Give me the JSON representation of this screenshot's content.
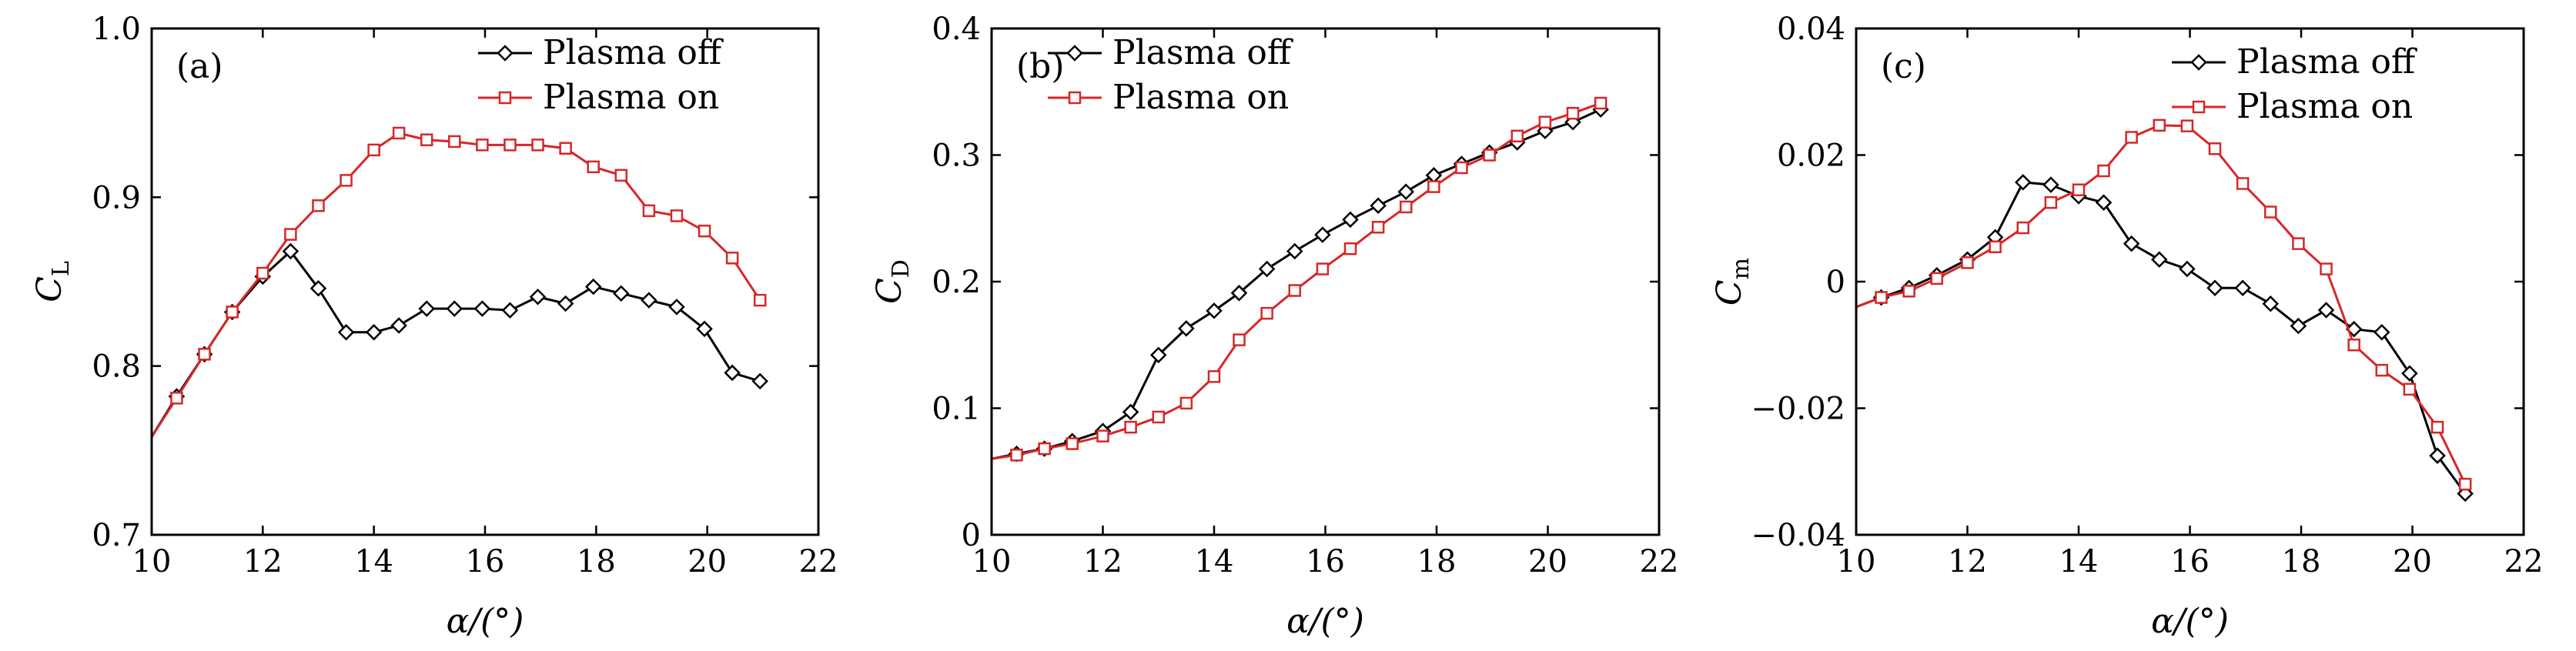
{
  "chart_data": [
    {
      "type": "line",
      "panel_label": "(a)",
      "xlabel": "α/(°)",
      "ylabel": {
        "main": "C",
        "sub": "L"
      },
      "xlim": [
        10,
        22
      ],
      "ylim": [
        0.7,
        1.0
      ],
      "xticks": [
        10,
        12,
        14,
        16,
        18,
        20,
        22
      ],
      "yticks": [
        0.7,
        0.8,
        0.9,
        1.0
      ],
      "ytick_labels": [
        "0.7",
        "0.8",
        "0.9",
        "1.0"
      ],
      "legend_position": "top-right",
      "series": [
        {
          "name": "Plasma off",
          "color": "#000000",
          "marker": "diamond",
          "x": [
            10,
            10.45,
            10.95,
            11.45,
            12.0,
            12.5,
            13.0,
            13.5,
            14.0,
            14.45,
            14.95,
            15.45,
            15.95,
            16.45,
            16.95,
            17.45,
            17.95,
            18.45,
            18.95,
            19.45,
            19.95,
            20.45,
            20.95
          ],
          "y": [
            0.758,
            0.782,
            0.807,
            0.832,
            0.853,
            0.868,
            0.846,
            0.82,
            0.82,
            0.824,
            0.834,
            0.834,
            0.834,
            0.833,
            0.841,
            0.837,
            0.847,
            0.843,
            0.839,
            0.835,
            0.822,
            0.796,
            0.791
          ]
        },
        {
          "name": "Plasma on",
          "color": "#d62728",
          "marker": "square",
          "x": [
            10,
            10.45,
            10.95,
            11.45,
            12.0,
            12.5,
            13.0,
            13.5,
            14.0,
            14.45,
            14.95,
            15.45,
            15.95,
            16.45,
            16.95,
            17.45,
            17.95,
            18.45,
            18.95,
            19.45,
            19.95,
            20.45,
            20.95
          ],
          "y": [
            0.758,
            0.781,
            0.807,
            0.832,
            0.855,
            0.878,
            0.895,
            0.91,
            0.928,
            0.938,
            0.934,
            0.933,
            0.931,
            0.931,
            0.931,
            0.929,
            0.918,
            0.913,
            0.892,
            0.889,
            0.88,
            0.864,
            0.839
          ]
        }
      ]
    },
    {
      "type": "line",
      "panel_label": "(b)",
      "xlabel": "α/(°)",
      "ylabel": {
        "main": "C",
        "sub": "D"
      },
      "xlim": [
        10,
        22
      ],
      "ylim": [
        0,
        0.4
      ],
      "xticks": [
        10,
        12,
        14,
        16,
        18,
        20,
        22
      ],
      "yticks": [
        0,
        0.1,
        0.2,
        0.3,
        0.4
      ],
      "ytick_labels": [
        "0",
        "0.1",
        "0.2",
        "0.3",
        "0.4"
      ],
      "legend_position": "top-left",
      "series": [
        {
          "name": "Plasma off",
          "color": "#000000",
          "marker": "diamond",
          "x": [
            10,
            10.45,
            10.95,
            11.45,
            12.0,
            12.5,
            13.0,
            13.5,
            14.0,
            14.45,
            14.95,
            15.45,
            15.95,
            16.45,
            16.95,
            17.45,
            17.95,
            18.45,
            18.95,
            19.45,
            19.95,
            20.45,
            20.95
          ],
          "y": [
            0.06,
            0.064,
            0.068,
            0.074,
            0.082,
            0.097,
            0.142,
            0.163,
            0.177,
            0.191,
            0.21,
            0.224,
            0.237,
            0.249,
            0.26,
            0.271,
            0.284,
            0.293,
            0.302,
            0.31,
            0.319,
            0.326,
            0.336
          ]
        },
        {
          "name": "Plasma on",
          "color": "#d62728",
          "marker": "square",
          "x": [
            10,
            10.45,
            10.95,
            11.45,
            12.0,
            12.5,
            13.0,
            13.5,
            14.0,
            14.45,
            14.95,
            15.45,
            15.95,
            16.45,
            16.95,
            17.45,
            17.95,
            18.45,
            18.95,
            19.45,
            19.95,
            20.45,
            20.95
          ],
          "y": [
            0.06,
            0.063,
            0.068,
            0.072,
            0.078,
            0.085,
            0.093,
            0.104,
            0.125,
            0.154,
            0.175,
            0.193,
            0.21,
            0.226,
            0.243,
            0.259,
            0.275,
            0.29,
            0.3,
            0.315,
            0.326,
            0.333,
            0.341
          ]
        }
      ]
    },
    {
      "type": "line",
      "panel_label": "(c)",
      "xlabel": "α/(°)",
      "ylabel": {
        "main": "C",
        "sub": "m"
      },
      "xlim": [
        10,
        22
      ],
      "ylim": [
        -0.04,
        0.04
      ],
      "xticks": [
        10,
        12,
        14,
        16,
        18,
        20,
        22
      ],
      "yticks": [
        -0.04,
        -0.02,
        0,
        0.02,
        0.04
      ],
      "ytick_labels": [
        "−0.04",
        "−0.02",
        "0",
        "0.02",
        "0.04"
      ],
      "legend_position": "top-right",
      "series": [
        {
          "name": "Plasma off",
          "color": "#000000",
          "marker": "diamond",
          "x": [
            10,
            10.45,
            10.95,
            11.45,
            12.0,
            12.5,
            13.0,
            13.5,
            14.0,
            14.45,
            14.95,
            15.45,
            15.95,
            16.45,
            16.95,
            17.45,
            17.95,
            18.45,
            18.95,
            19.45,
            19.95,
            20.45,
            20.95
          ],
          "y": [
            -0.004,
            -0.0025,
            -0.001,
            0.001,
            0.0035,
            0.007,
            0.0157,
            0.0153,
            0.0135,
            0.0125,
            0.006,
            0.0035,
            0.002,
            -0.001,
            -0.001,
            -0.0035,
            -0.007,
            -0.0045,
            -0.0075,
            -0.008,
            -0.0145,
            -0.0275,
            -0.0335
          ]
        },
        {
          "name": "Plasma on",
          "color": "#d62728",
          "marker": "square",
          "x": [
            10,
            10.45,
            10.95,
            11.45,
            12.0,
            12.5,
            13.0,
            13.5,
            14.0,
            14.45,
            14.95,
            15.45,
            15.95,
            16.45,
            16.95,
            17.45,
            17.95,
            18.45,
            18.95,
            19.45,
            19.95,
            20.45,
            20.95
          ],
          "y": [
            -0.004,
            -0.0025,
            -0.0015,
            0.0005,
            0.003,
            0.0055,
            0.0085,
            0.0125,
            0.0145,
            0.0175,
            0.0228,
            0.0247,
            0.0246,
            0.021,
            0.0155,
            0.011,
            0.006,
            0.002,
            -0.01,
            -0.014,
            -0.017,
            -0.023,
            -0.032
          ]
        }
      ]
    }
  ]
}
